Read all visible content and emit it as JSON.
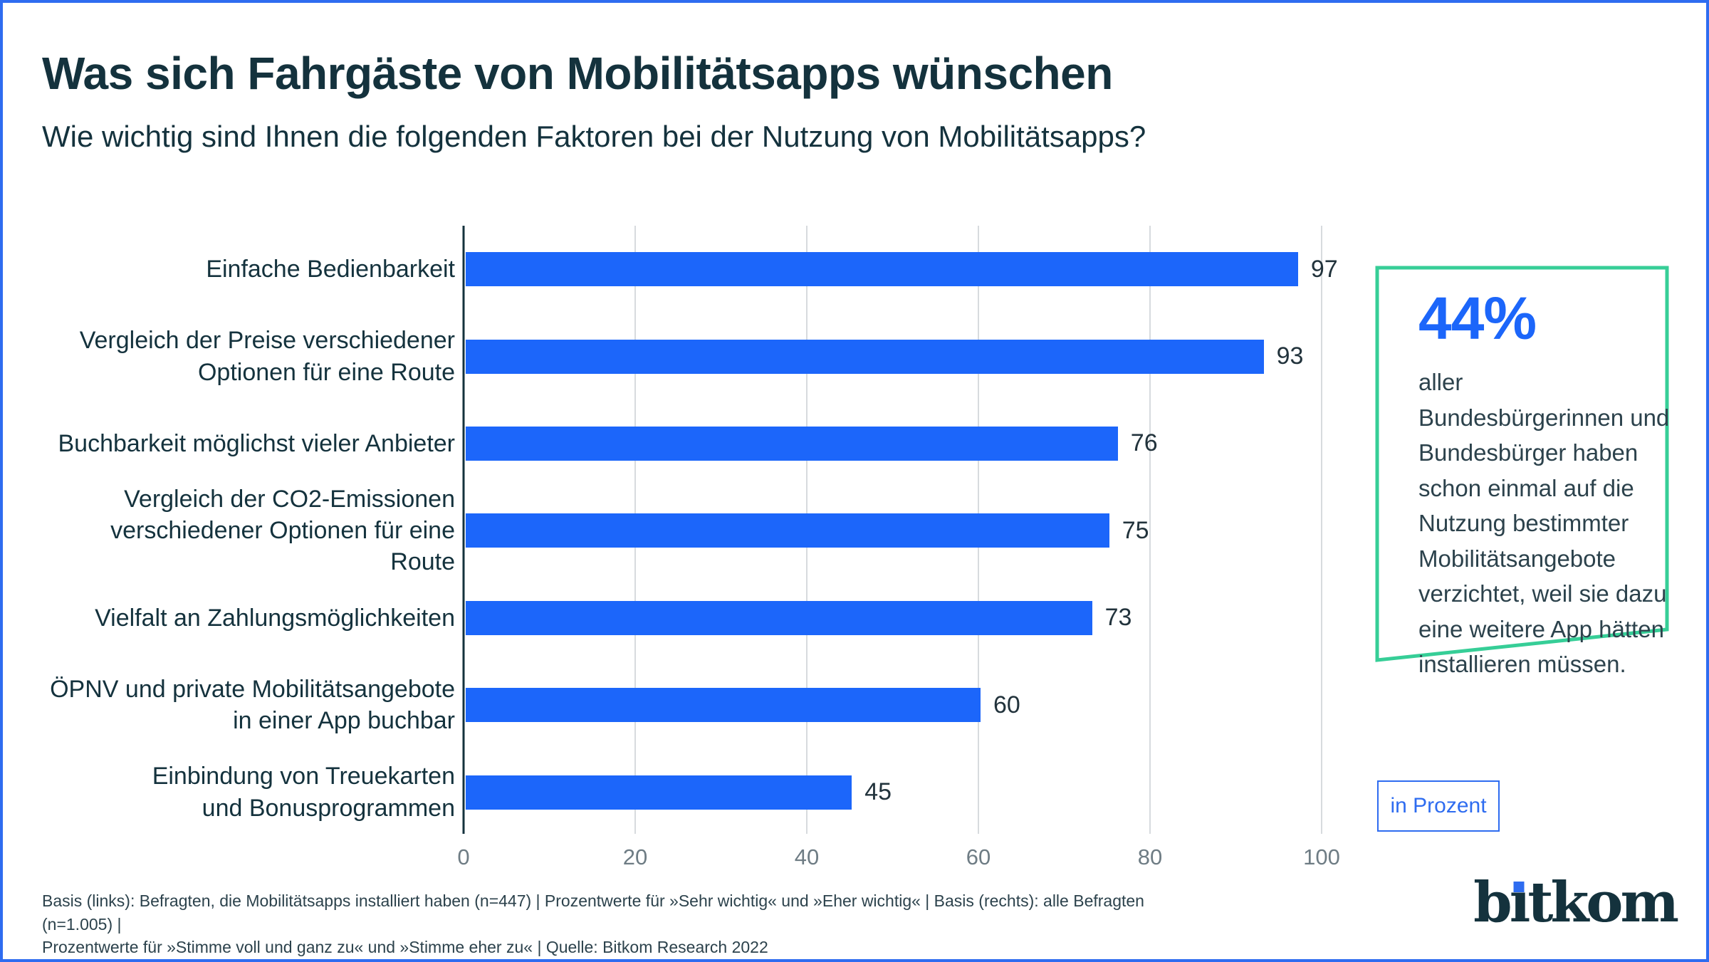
{
  "header": {
    "title": "Was sich Fahrgäste von Mobilitätsapps wünschen",
    "subtitle": "Wie wichtig sind Ihnen die folgenden Faktoren bei der Nutzung von Mobilitätsapps?"
  },
  "chart_data": {
    "type": "bar",
    "orientation": "horizontal",
    "title": "Was sich Fahrgäste von Mobilitätsapps wünschen",
    "subtitle": "Wie wichtig sind Ihnen die folgenden Faktoren bei der Nutzung von Mobilitätsapps?",
    "categories": [
      "Einfache Bedienbarkeit",
      "Vergleich der Preise verschiedener\nOptionen für eine Route",
      "Buchbarkeit möglichst vieler Anbieter",
      "Vergleich der CO2-Emissionen\nverschiedener Optionen für eine Route",
      "Vielfalt an Zahlungsmöglichkeiten",
      "ÖPNV und private Mobilitätsangebote\nin einer App buchbar",
      "Einbindung von Treuekarten\nund Bonusprogrammen"
    ],
    "values": [
      97,
      93,
      76,
      75,
      73,
      60,
      45
    ],
    "unit": "in Prozent",
    "xlim": [
      0,
      100
    ],
    "tick_labels": [
      "0",
      "20",
      "40",
      "60",
      "80",
      "100"
    ],
    "grid": true,
    "legend": "none"
  },
  "callout": {
    "percentage": "44%",
    "text": "aller Bundesbürgerinnen und Bundesbürger haben schon einmal auf die Nutzung bestimmter Mobilitätsangebote verzichtet, weil sie dazu eine weitere App hätten installieren müssen."
  },
  "badge": {
    "label": "in Prozent"
  },
  "footer": {
    "line1": "Basis (links): Befragten, die Mobilitätsapps installiert haben (n=447) | Prozentwerte für »Sehr wichtig« und »Eher wichtig« | Basis (rechts): alle Befragten (n=1.005) |",
    "line2": "Prozentwerte für »Stimme voll und ganz zu« und »Stimme eher zu« | Quelle: Bitkom Research 2022"
  },
  "logo": {
    "left": "b",
    "dotless_i": "ı",
    "right": "tkom"
  },
  "colors": {
    "frame_blue": "#2f6cf0",
    "bar_blue": "#1c66fa",
    "accent_blue": "#2e6cf0",
    "green": "#36ce97",
    "dark_navy": "#14323d",
    "body_text": "#2c424c",
    "tick_gray": "#6e7c84",
    "grid_gray": "#d7dbde",
    "value_text": "#22333c"
  }
}
